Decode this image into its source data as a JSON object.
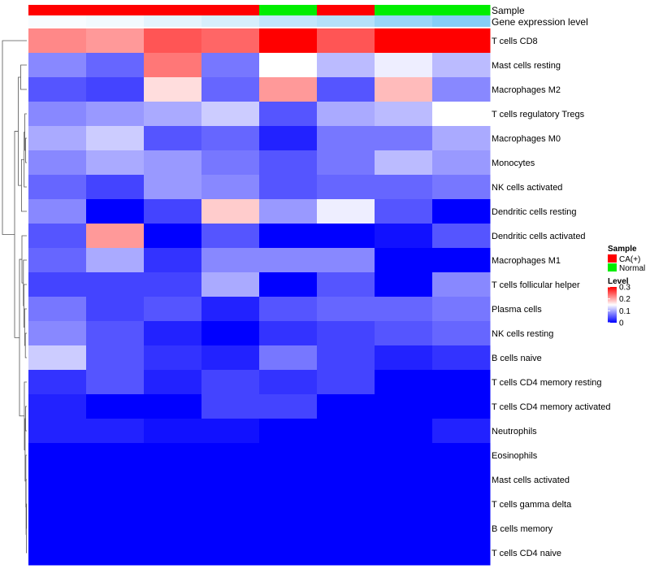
{
  "chart_data": {
    "type": "heatmap",
    "annotation_tracks": [
      "Sample",
      "Gene expression level"
    ],
    "sample_groups": [
      "CA(+)",
      "CA(+)",
      "CA(+)",
      "CA(+)",
      "Normal",
      "CA(+)",
      "Normal",
      "Normal"
    ],
    "gene_expression_level": [
      0.05,
      0.1,
      0.2,
      0.3,
      0.45,
      0.55,
      0.75,
      0.9
    ],
    "rows": [
      "T cells CD8",
      "Mast cells resting",
      "Macrophages M2",
      "T cells regulatory  Tregs",
      "Macrophages M0",
      "Monocytes",
      "NK cells activated",
      "Dendritic cells resting",
      "Dendritic cells activated",
      "Macrophages M1",
      "T cells follicular helper",
      "Plasma cells",
      "NK cells resting",
      "B cells naive",
      "T cells CD4 memory resting",
      "T cells CD4 memory activated",
      "Neutrophils",
      "Eosinophils",
      "Mast cells activated",
      "T cells gamma delta",
      "B cells memory",
      "T cells CD4 naive"
    ],
    "values": [
      [
        0.22,
        0.21,
        0.25,
        0.24,
        0.3,
        0.25,
        0.3,
        0.3
      ],
      [
        0.08,
        0.06,
        0.23,
        0.07,
        0.15,
        0.11,
        0.14,
        0.11
      ],
      [
        0.05,
        0.04,
        0.17,
        0.06,
        0.21,
        0.05,
        0.19,
        0.08
      ],
      [
        0.08,
        0.09,
        0.1,
        0.12,
        0.05,
        0.1,
        0.11,
        0.15
      ],
      [
        0.1,
        0.12,
        0.05,
        0.06,
        0.02,
        0.07,
        0.07,
        0.1
      ],
      [
        0.08,
        0.1,
        0.09,
        0.07,
        0.05,
        0.07,
        0.11,
        0.09
      ],
      [
        0.06,
        0.04,
        0.09,
        0.08,
        0.05,
        0.06,
        0.06,
        0.07
      ],
      [
        0.08,
        0.0,
        0.04,
        0.18,
        0.09,
        0.14,
        0.05,
        0.0
      ],
      [
        0.05,
        0.21,
        0.0,
        0.05,
        0.0,
        0.0,
        0.01,
        0.05
      ],
      [
        0.06,
        0.1,
        0.03,
        0.08,
        0.08,
        0.08,
        0.0,
        0.0
      ],
      [
        0.04,
        0.04,
        0.04,
        0.1,
        0.0,
        0.05,
        0.0,
        0.08
      ],
      [
        0.07,
        0.04,
        0.05,
        0.02,
        0.05,
        0.06,
        0.06,
        0.07
      ],
      [
        0.08,
        0.05,
        0.02,
        0.0,
        0.03,
        0.04,
        0.05,
        0.06
      ],
      [
        0.12,
        0.05,
        0.03,
        0.02,
        0.07,
        0.04,
        0.02,
        0.03
      ],
      [
        0.03,
        0.05,
        0.02,
        0.04,
        0.03,
        0.04,
        0.0,
        0.0
      ],
      [
        0.02,
        0.0,
        0.0,
        0.04,
        0.04,
        0.0,
        0.0,
        0.0
      ],
      [
        0.02,
        0.02,
        0.01,
        0.01,
        0.0,
        0.0,
        0.0,
        0.02
      ],
      [
        0.0,
        0.0,
        0.0,
        0.0,
        0.0,
        0.0,
        0.0,
        0.0
      ],
      [
        0.0,
        0.0,
        0.0,
        0.0,
        0.0,
        0.0,
        0.0,
        0.0
      ],
      [
        0.0,
        0.0,
        0.0,
        0.0,
        0.0,
        0.0,
        0.0,
        0.0
      ],
      [
        0.0,
        0.0,
        0.0,
        0.0,
        0.0,
        0.0,
        0.0,
        0.0
      ],
      [
        0.0,
        0.0,
        0.0,
        0.0,
        0.0,
        0.0,
        0.0,
        0.0
      ]
    ],
    "color_scale": {
      "min": 0,
      "mid": 0.15,
      "max": 0.3,
      "low": "#0000ff",
      "middle": "#ffffff",
      "high": "#ff0000"
    },
    "legend": {
      "sample_title": "Sample",
      "sample_entries": [
        {
          "label": "CA(+)",
          "color": "#ff0000"
        },
        {
          "label": "Normal",
          "color": "#00ee00"
        }
      ],
      "level_title": "Level",
      "level_ticks": [
        "0.3",
        "0.2",
        "0.1",
        "0"
      ],
      "level_tick_values": [
        0.3,
        0.2,
        0.1,
        0
      ]
    },
    "row_dendrogram": "shown",
    "legend_position": "right"
  }
}
